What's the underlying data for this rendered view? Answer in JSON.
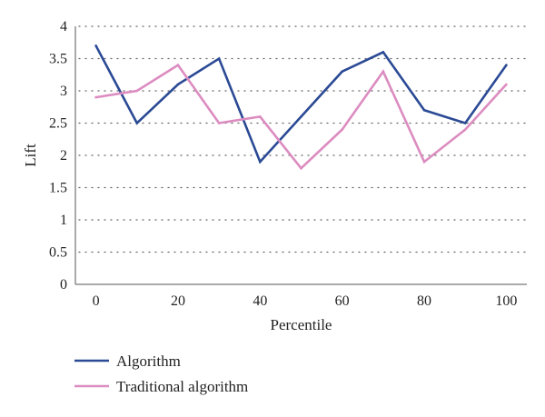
{
  "chart_data": {
    "type": "line",
    "xlabel": "Percentile",
    "ylabel": "Lift",
    "x": [
      0,
      10,
      20,
      30,
      40,
      50,
      60,
      70,
      80,
      90,
      100
    ],
    "xticks": [
      "0",
      "20",
      "40",
      "60",
      "80",
      "100"
    ],
    "xtick_values": [
      0,
      20,
      40,
      60,
      80,
      100
    ],
    "yticks": [
      "0",
      "0.5",
      "1",
      "1.5",
      "2",
      "2.5",
      "3",
      "3.5",
      "4"
    ],
    "ytick_values": [
      0,
      0.5,
      1,
      1.5,
      2,
      2.5,
      3,
      3.5,
      4
    ],
    "xlim": [
      -5,
      105
    ],
    "ylim": [
      0,
      4
    ],
    "grid": "horizontal dotted",
    "legend_position": "bottom-left",
    "series": [
      {
        "name": "Algorithm",
        "color": "#2b4a95",
        "values": [
          3.7,
          2.5,
          3.1,
          3.5,
          1.9,
          2.6,
          3.3,
          3.6,
          2.7,
          2.5,
          3.4
        ]
      },
      {
        "name": "Traditional algorithm",
        "color": "#dc8cc0",
        "values": [
          2.9,
          3.0,
          3.4,
          2.5,
          2.6,
          1.8,
          2.4,
          3.3,
          1.9,
          2.4,
          3.1
        ]
      }
    ]
  }
}
